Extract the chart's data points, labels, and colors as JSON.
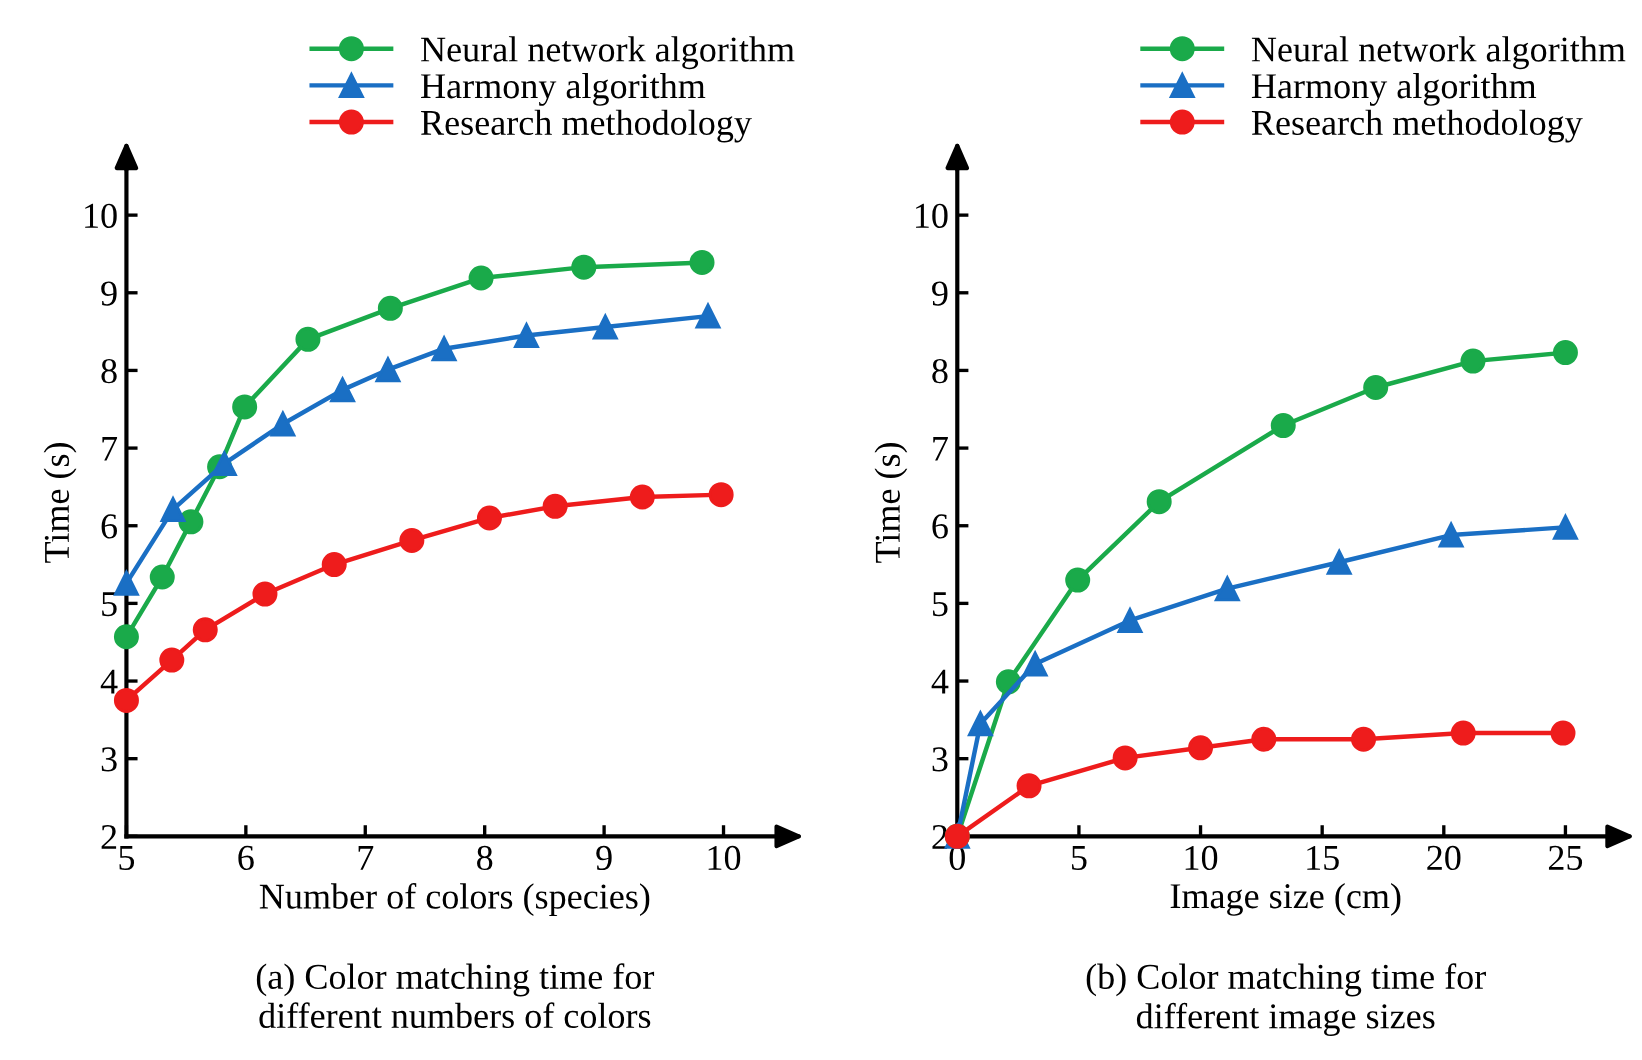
{
  "chart_data": [
    {
      "type": "line",
      "xlabel": "Number of colors (species)",
      "ylabel": "Time (s)",
      "annotations": [
        "(a) Color matching time for\ndifferent numbers of colors"
      ],
      "xlim": [
        5,
        10.5
      ],
      "xticks": [
        5,
        6,
        7,
        8,
        9,
        10
      ],
      "ylim": [
        2,
        10.6
      ],
      "yticks": [
        2,
        3,
        4,
        5,
        6,
        7,
        8,
        9,
        10
      ],
      "legend": "top right",
      "grid": false,
      "series": [
        {
          "name": "Neural network algorithm",
          "color": "#1aaa4a",
          "marker": "circle",
          "x": [
            5,
            5.3,
            5.54,
            5.78,
            5.99,
            6.52,
            7.21,
            7.97,
            8.83,
            9.82
          ],
          "values": [
            4.57,
            5.34,
            6.05,
            6.76,
            7.53,
            8.4,
            8.8,
            9.19,
            9.33,
            9.39
          ]
        },
        {
          "name": "Harmony algorithm",
          "color": "#1a6fc4",
          "marker": "triangle",
          "x": [
            5,
            5.39,
            5.82,
            6.31,
            6.81,
            7.19,
            7.66,
            8.35,
            9.01,
            9.87
          ],
          "values": [
            5.26,
            6.21,
            6.8,
            7.31,
            7.75,
            8.01,
            8.28,
            8.45,
            8.56,
            8.7
          ]
        },
        {
          "name": "Research methodology",
          "color": "#ee1c1c",
          "marker": "circle",
          "x": [
            5,
            5.38,
            5.66,
            6.16,
            6.74,
            7.39,
            8.04,
            8.59,
            9.32,
            9.98
          ],
          "values": [
            3.75,
            4.27,
            4.66,
            5.12,
            5.5,
            5.81,
            6.1,
            6.25,
            6.37,
            6.4
          ]
        }
      ]
    },
    {
      "type": "line",
      "xlabel": "Image size (cm)",
      "ylabel": "Time (s)",
      "annotations": [
        "(b) Color matching time for\ndifferent image sizes"
      ],
      "xlim": [
        0,
        27
      ],
      "xticks": [
        0,
        5,
        10,
        15,
        20,
        25
      ],
      "ylim": [
        2,
        10.6
      ],
      "yticks": [
        2,
        3,
        4,
        5,
        6,
        7,
        8,
        9,
        10
      ],
      "legend": "top right",
      "grid": false,
      "series": [
        {
          "name": "Neural network algorithm",
          "color": "#1aaa4a",
          "marker": "circle",
          "x": [
            0,
            2.1,
            4.95,
            8.3,
            13.4,
            17.2,
            21.2,
            25
          ],
          "values": [
            2,
            3.99,
            5.3,
            6.31,
            7.29,
            7.78,
            8.12,
            8.23
          ]
        },
        {
          "name": "Harmony algorithm",
          "color": "#1a6fc4",
          "marker": "triangle",
          "x": [
            0,
            0.95,
            3.2,
            7.1,
            11.1,
            15.7,
            20.3,
            25
          ],
          "values": [
            2,
            3.45,
            4.22,
            4.78,
            5.19,
            5.53,
            5.88,
            5.98
          ]
        },
        {
          "name": "Research methodology",
          "color": "#ee1c1c",
          "marker": "circle",
          "x": [
            0,
            2.95,
            6.9,
            10,
            12.6,
            16.7,
            20.8,
            24.9
          ],
          "values": [
            2,
            2.65,
            3.01,
            3.14,
            3.25,
            3.25,
            3.33,
            3.33
          ]
        }
      ]
    }
  ]
}
